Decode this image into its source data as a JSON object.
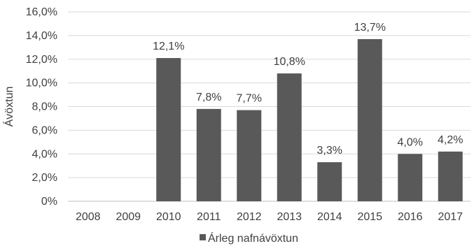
{
  "chart_data": {
    "type": "bar",
    "categories": [
      "2008",
      "2009",
      "2010",
      "2011",
      "2012",
      "2013",
      "2014",
      "2015",
      "2016",
      "2017"
    ],
    "series": [
      {
        "name": "Árleg nafnávöxtun",
        "values": [
          null,
          null,
          12.1,
          7.8,
          7.7,
          10.8,
          3.3,
          13.7,
          4.0,
          4.2
        ],
        "labels": [
          "",
          "",
          "12,1%",
          "7,8%",
          "7,7%",
          "10,8%",
          "3,3%",
          "13,7%",
          "4,0%",
          "4,2%"
        ]
      }
    ],
    "ylabel": "Ávöxtun",
    "ylim": [
      0,
      16
    ],
    "yticks": [
      0,
      2,
      4,
      6,
      8,
      10,
      12,
      14,
      16
    ],
    "ytick_labels": [
      "0%",
      "2,0%",
      "4,0%",
      "6,0%",
      "8,0%",
      "10,0%",
      "12,0%",
      "14,0%",
      "16,0%"
    ],
    "grid": true,
    "legend_position": "bottom",
    "colors": {
      "bar": "#595959",
      "grid": "#d9d9d9",
      "axis": "#bfbfbf",
      "text": "#404040"
    }
  }
}
